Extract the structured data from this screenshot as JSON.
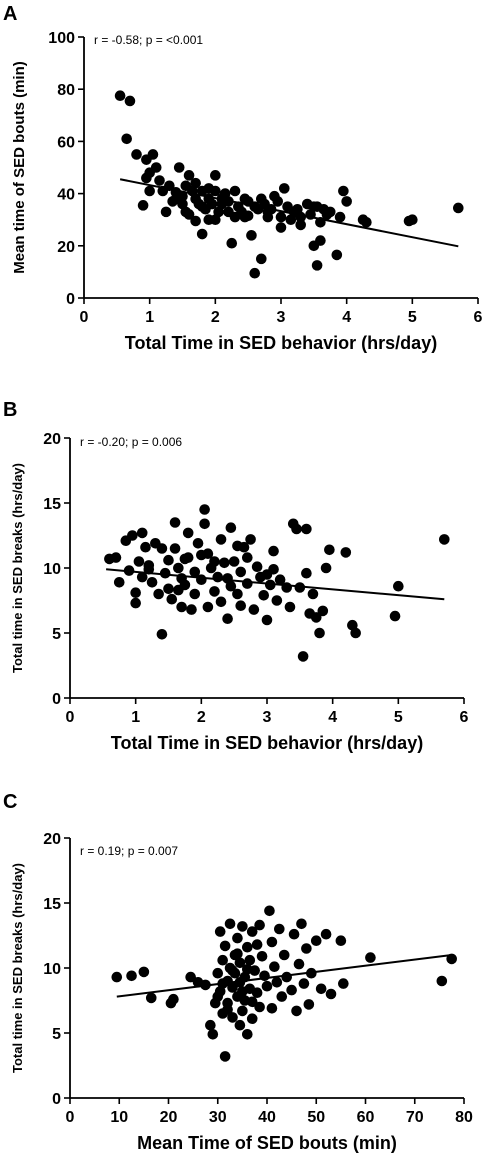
{
  "chart_data": [
    {
      "type": "scatter",
      "panel": "A",
      "annotation": "r = -0.58; p = <0.001",
      "xlabel": "Total Time in SED behavior (hrs/day)",
      "ylabel": "Mean time of SED bouts (min)",
      "xlim": [
        0,
        6
      ],
      "ylim": [
        0,
        100
      ],
      "xticks": [
        0,
        1,
        2,
        3,
        4,
        5,
        6
      ],
      "yticks": [
        0,
        20,
        40,
        60,
        80,
        100
      ],
      "trendline": [
        [
          0.55,
          45.5
        ],
        [
          5.7,
          19.8
        ]
      ],
      "points": [
        [
          0.55,
          77.5
        ],
        [
          0.7,
          75.5
        ],
        [
          0.65,
          61
        ],
        [
          0.8,
          55
        ],
        [
          0.95,
          53
        ],
        [
          1.05,
          55
        ],
        [
          0.95,
          46
        ],
        [
          1.0,
          48
        ],
        [
          0.9,
          35.5
        ],
        [
          1.0,
          41
        ],
        [
          1.1,
          50
        ],
        [
          1.15,
          45
        ],
        [
          1.2,
          41
        ],
        [
          1.25,
          33
        ],
        [
          1.3,
          43
        ],
        [
          1.35,
          37
        ],
        [
          1.4,
          40.5
        ],
        [
          1.45,
          50
        ],
        [
          1.5,
          39
        ],
        [
          1.5,
          36
        ],
        [
          1.55,
          43
        ],
        [
          1.6,
          47
        ],
        [
          1.6,
          32
        ],
        [
          1.65,
          41
        ],
        [
          1.7,
          38
        ],
        [
          1.7,
          44
        ],
        [
          1.75,
          36
        ],
        [
          1.8,
          41
        ],
        [
          1.8,
          24.5
        ],
        [
          1.85,
          34
        ],
        [
          1.9,
          38
        ],
        [
          1.9,
          42
        ],
        [
          1.95,
          36
        ],
        [
          2.0,
          41
        ],
        [
          2.0,
          47
        ],
        [
          2.05,
          33
        ],
        [
          2.1,
          38
        ],
        [
          2.1,
          36
        ],
        [
          2.15,
          40
        ],
        [
          2.2,
          33
        ],
        [
          2.2,
          37
        ],
        [
          2.25,
          21
        ],
        [
          2.3,
          41
        ],
        [
          2.35,
          35
        ],
        [
          2.4,
          33
        ],
        [
          2.45,
          38
        ],
        [
          2.5,
          37
        ],
        [
          2.5,
          31.5
        ],
        [
          2.55,
          24
        ],
        [
          2.6,
          35
        ],
        [
          2.6,
          9.5
        ],
        [
          2.65,
          34
        ],
        [
          2.7,
          15
        ],
        [
          2.7,
          38
        ],
        [
          2.75,
          36
        ],
        [
          2.8,
          33
        ],
        [
          2.85,
          34
        ],
        [
          2.9,
          39
        ],
        [
          2.95,
          37
        ],
        [
          3.0,
          31
        ],
        [
          3.0,
          27
        ],
        [
          3.05,
          42
        ],
        [
          3.1,
          35
        ],
        [
          3.15,
          30
        ],
        [
          3.2,
          33
        ],
        [
          3.25,
          34
        ],
        [
          3.3,
          31
        ],
        [
          3.4,
          36
        ],
        [
          3.45,
          32
        ],
        [
          3.5,
          35
        ],
        [
          3.5,
          20
        ],
        [
          3.55,
          12.5
        ],
        [
          3.55,
          35
        ],
        [
          3.6,
          29
        ],
        [
          3.6,
          22
        ],
        [
          3.65,
          34
        ],
        [
          3.7,
          32
        ],
        [
          3.75,
          33
        ],
        [
          3.85,
          16.5
        ],
        [
          3.9,
          31
        ],
        [
          3.95,
          41
        ],
        [
          4.0,
          37
        ],
        [
          4.25,
          30
        ],
        [
          4.3,
          29
        ],
        [
          4.95,
          29.5
        ],
        [
          5.0,
          30
        ],
        [
          5.7,
          34.5
        ],
        [
          2.3,
          31
        ],
        [
          1.9,
          30
        ],
        [
          2.45,
          31
        ],
        [
          2.8,
          31
        ],
        [
          3.3,
          28
        ],
        [
          1.4,
          38
        ],
        [
          1.55,
          33
        ],
        [
          2.0,
          30
        ],
        [
          1.7,
          29.5
        ],
        [
          1.8,
          35
        ]
      ]
    },
    {
      "type": "scatter",
      "panel": "B",
      "annotation": "r = -0.20; p = 0.006",
      "xlabel": "Total Time in SED behavior (hrs/day)",
      "ylabel": "Total time in SED breaks (hrs/day)",
      "xlim": [
        0,
        6
      ],
      "ylim": [
        0,
        20
      ],
      "xticks": [
        0,
        1,
        2,
        3,
        4,
        5,
        6
      ],
      "yticks": [
        0,
        5,
        10,
        15,
        20
      ],
      "trendline": [
        [
          0.55,
          9.9
        ],
        [
          5.7,
          7.6
        ]
      ],
      "points": [
        [
          0.6,
          10.7
        ],
        [
          0.7,
          10.8
        ],
        [
          0.75,
          8.9
        ],
        [
          0.85,
          12.1
        ],
        [
          0.9,
          9.8
        ],
        [
          0.95,
          12.5
        ],
        [
          1.0,
          8.1
        ],
        [
          1.0,
          7.3
        ],
        [
          1.05,
          10.5
        ],
        [
          1.1,
          12.7
        ],
        [
          1.1,
          9.3
        ],
        [
          1.15,
          11.6
        ],
        [
          1.2,
          10.2
        ],
        [
          1.25,
          8.9
        ],
        [
          1.3,
          11.9
        ],
        [
          1.35,
          8.0
        ],
        [
          1.4,
          4.9
        ],
        [
          1.4,
          11.5
        ],
        [
          1.45,
          9.6
        ],
        [
          1.5,
          10.6
        ],
        [
          1.5,
          8.4
        ],
        [
          1.55,
          7.6
        ],
        [
          1.6,
          13.5
        ],
        [
          1.6,
          11.5
        ],
        [
          1.65,
          10.0
        ],
        [
          1.7,
          9.2
        ],
        [
          1.7,
          7.0
        ],
        [
          1.75,
          8.7
        ],
        [
          1.8,
          12.7
        ],
        [
          1.8,
          10.8
        ],
        [
          1.85,
          6.8
        ],
        [
          1.9,
          9.7
        ],
        [
          1.9,
          8.0
        ],
        [
          1.95,
          11.9
        ],
        [
          2.0,
          11.0
        ],
        [
          2.0,
          9.1
        ],
        [
          2.05,
          14.5
        ],
        [
          2.05,
          13.4
        ],
        [
          2.1,
          7.0
        ],
        [
          2.1,
          11.1
        ],
        [
          2.15,
          10.0
        ],
        [
          2.2,
          8.2
        ],
        [
          2.25,
          9.3
        ],
        [
          2.3,
          12.2
        ],
        [
          2.3,
          7.4
        ],
        [
          2.35,
          10.4
        ],
        [
          2.4,
          6.1
        ],
        [
          2.45,
          13.1
        ],
        [
          2.45,
          8.6
        ],
        [
          2.5,
          10.5
        ],
        [
          2.55,
          11.7
        ],
        [
          2.6,
          7.1
        ],
        [
          2.6,
          9.7
        ],
        [
          2.65,
          11.6
        ],
        [
          2.7,
          8.8
        ],
        [
          2.75,
          12.2
        ],
        [
          2.8,
          6.8
        ],
        [
          2.85,
          10.1
        ],
        [
          2.9,
          9.3
        ],
        [
          2.95,
          7.9
        ],
        [
          3.0,
          6.0
        ],
        [
          3.0,
          9.5
        ],
        [
          3.05,
          8.7
        ],
        [
          3.1,
          11.3
        ],
        [
          3.15,
          7.5
        ],
        [
          3.2,
          9.1
        ],
        [
          3.3,
          8.5
        ],
        [
          3.35,
          7.0
        ],
        [
          3.4,
          13.4
        ],
        [
          3.45,
          13.0
        ],
        [
          3.5,
          8.5
        ],
        [
          3.55,
          3.2
        ],
        [
          3.6,
          13.0
        ],
        [
          3.6,
          9.6
        ],
        [
          3.65,
          6.5
        ],
        [
          3.7,
          8.0
        ],
        [
          3.75,
          6.2
        ],
        [
          3.8,
          5.0
        ],
        [
          3.85,
          6.7
        ],
        [
          3.9,
          10.0
        ],
        [
          3.95,
          11.4
        ],
        [
          4.2,
          11.2
        ],
        [
          4.3,
          5.6
        ],
        [
          4.35,
          5.0
        ],
        [
          4.95,
          6.3
        ],
        [
          5.0,
          8.6
        ],
        [
          5.7,
          12.2
        ],
        [
          1.2,
          9.9
        ],
        [
          2.2,
          10.5
        ],
        [
          2.7,
          10.8
        ],
        [
          1.75,
          10.7
        ],
        [
          2.4,
          9.2
        ],
        [
          3.1,
          9.9
        ],
        [
          1.65,
          8.3
        ],
        [
          2.55,
          8.0
        ]
      ]
    },
    {
      "type": "scatter",
      "panel": "C",
      "annotation": "r = 0.19; p = 0.007",
      "xlabel": "Mean Time of SED bouts (min)",
      "ylabel": "Total time in SED breaks (hrs/day)",
      "xlim": [
        0,
        80
      ],
      "ylim": [
        0,
        20
      ],
      "xticks": [
        0,
        10,
        20,
        30,
        40,
        50,
        60,
        70,
        80
      ],
      "yticks": [
        0,
        5,
        10,
        15,
        20
      ],
      "trendline": [
        [
          9.5,
          7.8
        ],
        [
          77.5,
          11.0
        ]
      ],
      "points": [
        [
          9.5,
          9.3
        ],
        [
          12.5,
          9.4
        ],
        [
          15,
          9.7
        ],
        [
          16.5,
          7.7
        ],
        [
          20.5,
          7.3
        ],
        [
          21,
          7.6
        ],
        [
          24.5,
          9.3
        ],
        [
          26,
          8.9
        ],
        [
          27.5,
          8.7
        ],
        [
          28.5,
          5.6
        ],
        [
          29,
          4.9
        ],
        [
          29.5,
          7.3
        ],
        [
          30,
          9.6
        ],
        [
          30.5,
          12.8
        ],
        [
          30.5,
          8.2
        ],
        [
          31,
          6.5
        ],
        [
          31,
          10.6
        ],
        [
          31.5,
          3.2
        ],
        [
          31.5,
          11.7
        ],
        [
          32,
          9.0
        ],
        [
          32,
          7.3
        ],
        [
          32.5,
          13.4
        ],
        [
          32.5,
          10.0
        ],
        [
          33,
          8.5
        ],
        [
          33,
          6.2
        ],
        [
          33.5,
          11.0
        ],
        [
          33.5,
          9.6
        ],
        [
          34,
          7.8
        ],
        [
          34,
          12.3
        ],
        [
          34.5,
          8.9
        ],
        [
          34.5,
          10.4
        ],
        [
          35,
          6.7
        ],
        [
          35,
          13.2
        ],
        [
          35.5,
          9.3
        ],
        [
          35.5,
          7.5
        ],
        [
          36,
          11.6
        ],
        [
          36,
          4.9
        ],
        [
          36.5,
          8.4
        ],
        [
          36.5,
          10.6
        ],
        [
          37,
          12.8
        ],
        [
          37,
          6.1
        ],
        [
          37.5,
          9.8
        ],
        [
          38,
          8.1
        ],
        [
          38.5,
          13.3
        ],
        [
          38.5,
          7.0
        ],
        [
          39,
          10.9
        ],
        [
          39.5,
          9.4
        ],
        [
          40,
          8.6
        ],
        [
          40.5,
          14.4
        ],
        [
          41,
          12.0
        ],
        [
          41,
          6.9
        ],
        [
          41.5,
          10.1
        ],
        [
          42,
          8.9
        ],
        [
          42.5,
          13.0
        ],
        [
          43,
          7.8
        ],
        [
          43.5,
          11.0
        ],
        [
          44,
          9.3
        ],
        [
          45,
          8.3
        ],
        [
          45.5,
          12.6
        ],
        [
          46,
          6.7
        ],
        [
          46.5,
          10.3
        ],
        [
          47,
          13.4
        ],
        [
          47.5,
          8.8
        ],
        [
          48,
          11.5
        ],
        [
          48.5,
          7.2
        ],
        [
          49,
          9.6
        ],
        [
          50,
          12.1
        ],
        [
          51,
          8.4
        ],
        [
          52,
          12.6
        ],
        [
          53,
          8.0
        ],
        [
          55,
          12.1
        ],
        [
          55.5,
          8.8
        ],
        [
          61,
          10.8
        ],
        [
          75.5,
          9.0
        ],
        [
          77.5,
          10.7
        ],
        [
          31,
          8.8
        ],
        [
          33,
          9.8
        ],
        [
          34,
          11.1
        ],
        [
          35,
          8.2
        ],
        [
          36,
          9.9
        ],
        [
          37,
          7.4
        ],
        [
          32,
          6.8
        ],
        [
          30,
          7.8
        ],
        [
          38,
          11.8
        ],
        [
          34.5,
          5.6
        ]
      ]
    }
  ]
}
